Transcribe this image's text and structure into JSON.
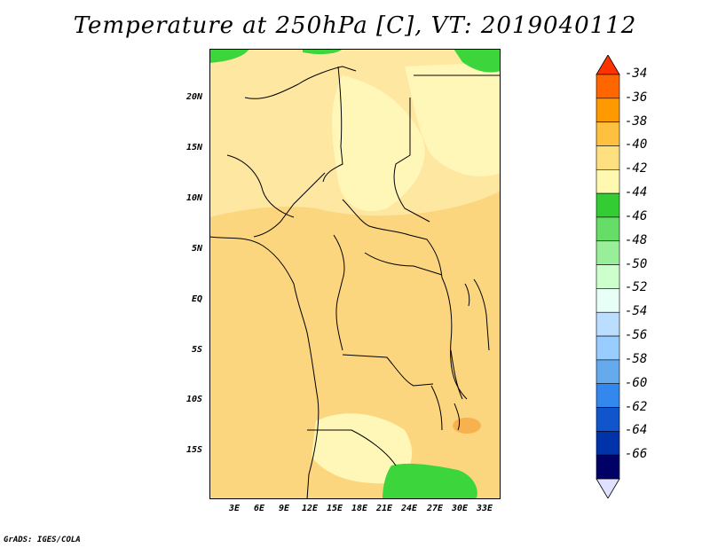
{
  "title": "Temperature at 250hPa [C], VT: 2019040112",
  "credit": "GrADS: IGES/COLA",
  "lat_labels": [
    "20N",
    "15N",
    "10N",
    "5N",
    "EQ",
    "5S",
    "10S",
    "15S"
  ],
  "lon_labels": [
    "3E",
    "6E",
    "9E",
    "12E",
    "15E",
    "18E",
    "21E",
    "24E",
    "27E",
    "30E",
    "33E"
  ],
  "colorbar": {
    "labels": [
      "-34",
      "-36",
      "-38",
      "-40",
      "-42",
      "-44",
      "-46",
      "-48",
      "-50",
      "-52",
      "-54",
      "-56",
      "-58",
      "-60",
      "-62",
      "-64",
      "-66"
    ],
    "colors": [
      "#ff3300",
      "#ff6600",
      "#ff9900",
      "#ffc040",
      "#ffe080",
      "#fff8b0",
      "#33cc33",
      "#66dd66",
      "#99ee99",
      "#ccffcc",
      "#e8fff8",
      "#bbddff",
      "#99ccff",
      "#66aaee",
      "#3388ee",
      "#1155cc",
      "#0033aa",
      "#000066",
      "#e0e0ff"
    ]
  },
  "map_colors": {
    "base": "#fde7a1",
    "warm": "#fbd67f",
    "pale": "#fff7b8",
    "green": "#3cd63c",
    "orange": "#f7b24f",
    "border": "#000000"
  }
}
